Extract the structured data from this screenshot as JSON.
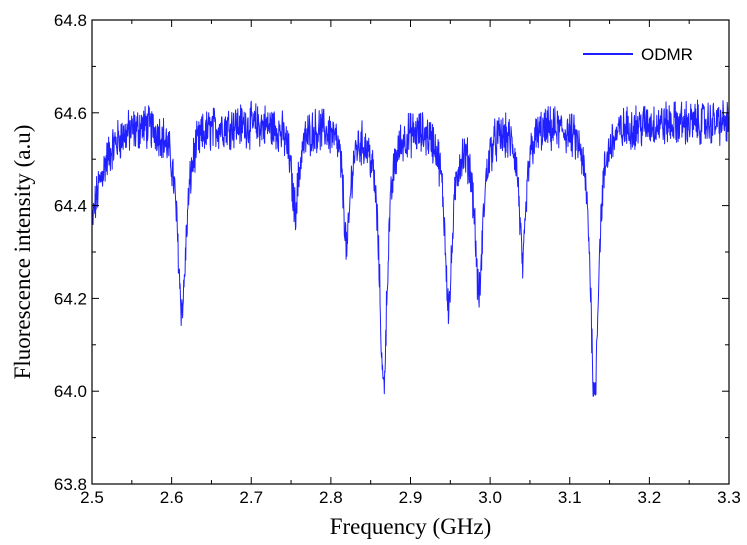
{
  "chart_data": {
    "type": "line",
    "xlabel": "Frequency (GHz)",
    "ylabel": "Fluorescence intensity (a.u)",
    "xlim": [
      2.5,
      3.3
    ],
    "ylim": [
      63.8,
      64.8
    ],
    "x_ticks": [
      "2.5",
      "2.6",
      "2.7",
      "2.8",
      "2.9",
      "3.0",
      "3.1",
      "3.2",
      "3.3"
    ],
    "y_ticks": [
      "63.8",
      "64.0",
      "64.2",
      "64.4",
      "64.6",
      "64.8"
    ],
    "grid": false,
    "legend": {
      "position": "top-right",
      "entries": [
        "ODMR"
      ]
    },
    "series": [
      {
        "name": "ODMR",
        "color": "#1f1fff",
        "baseline": 64.58,
        "noise_amplitude": 0.04,
        "dips": [
          {
            "center_ghz": 2.613,
            "depth": 0.4,
            "width_ghz": 0.007
          },
          {
            "center_ghz": 2.755,
            "depth": 0.18,
            "width_ghz": 0.006
          },
          {
            "center_ghz": 2.82,
            "depth": 0.26,
            "width_ghz": 0.005
          },
          {
            "center_ghz": 2.866,
            "depth": 0.56,
            "width_ghz": 0.006
          },
          {
            "center_ghz": 2.948,
            "depth": 0.38,
            "width_ghz": 0.006
          },
          {
            "center_ghz": 2.986,
            "depth": 0.36,
            "width_ghz": 0.006
          },
          {
            "center_ghz": 3.041,
            "depth": 0.3,
            "width_ghz": 0.005
          },
          {
            "center_ghz": 3.131,
            "depth": 0.59,
            "width_ghz": 0.006
          }
        ]
      }
    ]
  }
}
